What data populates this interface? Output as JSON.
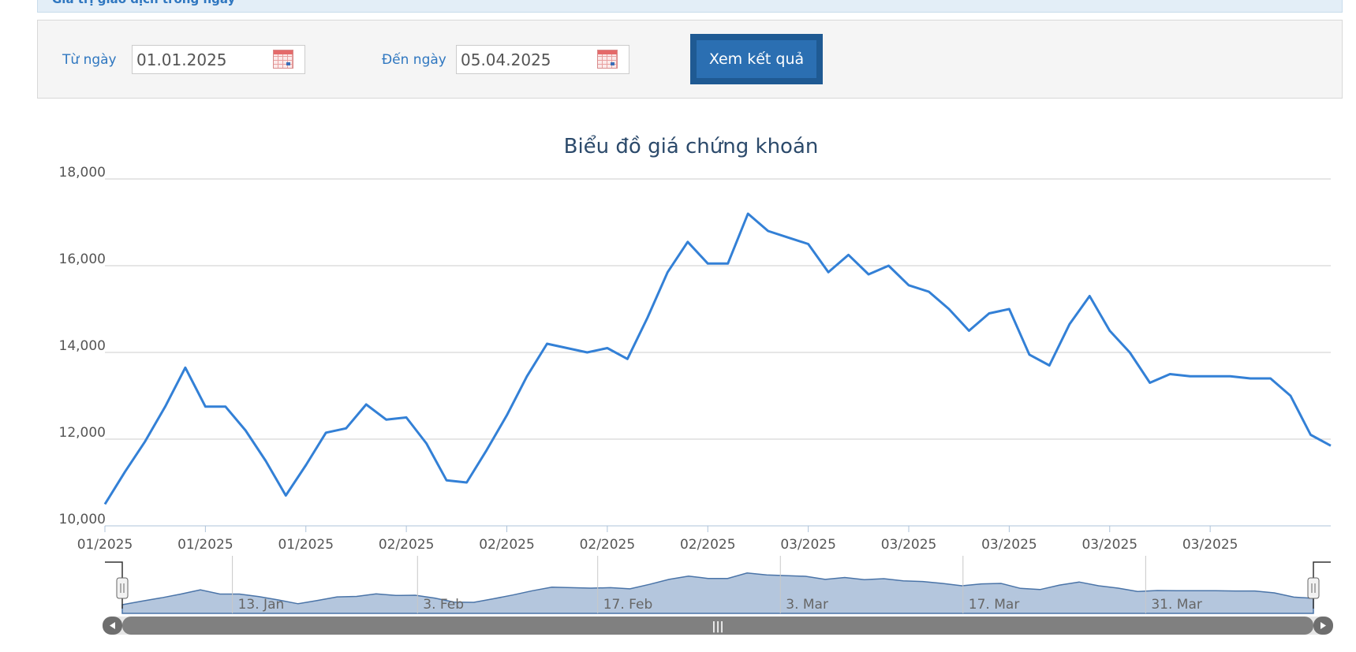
{
  "header": {
    "title": "Giá trị giao dịch trong ngày"
  },
  "filter": {
    "from_label": "Từ ngày",
    "from_value": "01.01.2025",
    "to_label": "Đến ngày",
    "to_value": "05.04.2025",
    "submit_label": "Xem kết quả"
  },
  "colors": {
    "accent": "#2f77c0",
    "line": "#3380d6",
    "navigator_fill": "#b4c6dd",
    "scrollbar": "#808080"
  },
  "chart_data": {
    "type": "line",
    "title": "Biểu đồ giá chứng khoán",
    "xlabel": "",
    "ylabel": "",
    "ylim": [
      10000,
      18000
    ],
    "yticks": [
      10000,
      12000,
      14000,
      16000,
      18000
    ],
    "ytick_labels": [
      "10,000",
      "12,000",
      "14,000",
      "16,000",
      "18,000"
    ],
    "grid": true,
    "xtick_labels": [
      "01/2025",
      "01/2025",
      "01/2025",
      "02/2025",
      "02/2025",
      "02/2025",
      "02/2025",
      "03/2025",
      "03/2025",
      "03/2025",
      "03/2025",
      "03/2025"
    ],
    "series": [
      {
        "values": [
          10500,
          11250,
          11950,
          12750,
          13650,
          12750,
          12750,
          12200,
          11500,
          10700,
          11400,
          12150,
          12250,
          12800,
          12450,
          12500,
          11900,
          11050,
          11000,
          11750,
          12550,
          13450,
          14200,
          14100,
          14000,
          14100,
          13850,
          14800,
          15850,
          16550,
          16050,
          16050,
          17200,
          16800,
          16650,
          16500,
          15850,
          16250,
          15800,
          16000,
          15550,
          15400,
          15000,
          14500,
          14900,
          15000,
          13950,
          13700,
          14650,
          15300,
          14500,
          14000,
          13300,
          13500,
          13450,
          13450,
          13450,
          13400,
          13400,
          13000,
          12100,
          11850
        ]
      }
    ],
    "navigator": {
      "labels": [
        "13. Jan",
        "3. Feb",
        "17. Feb",
        "3. Mar",
        "17. Mar",
        "31. Mar"
      ],
      "scrollbar_grip": "|||"
    }
  }
}
